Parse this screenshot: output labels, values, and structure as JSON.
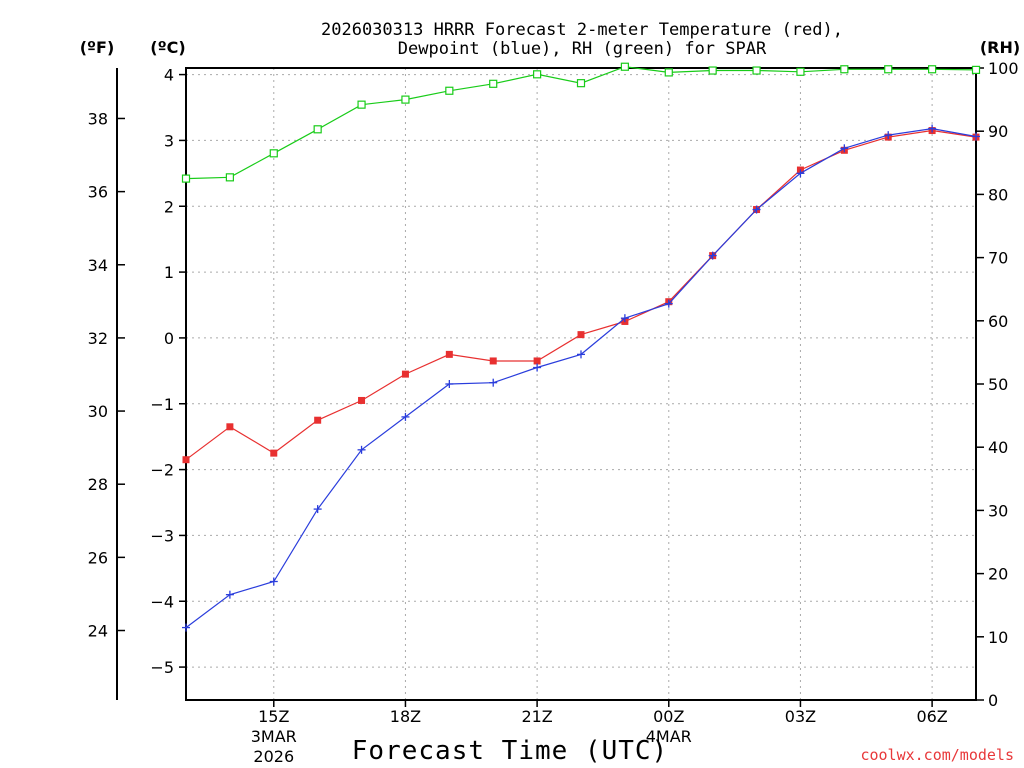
{
  "chart_data": {
    "type": "line",
    "title_line1": "2026030313 HRRR Forecast 2-meter Temperature (red),",
    "title_line2": "Dewpoint (blue), RH (green) for SPAR",
    "xlabel": "Forecast Time (UTC)",
    "credit": "coolwx.com/models",
    "units": {
      "left_outer": "(ºF)",
      "left_inner": "(ºC)",
      "right": "(RH)"
    },
    "xlim": [
      13,
      31
    ],
    "x_ticks": [
      {
        "x": 15,
        "label": "15Z",
        "sub1": "3MAR",
        "sub2": "2026"
      },
      {
        "x": 18,
        "label": "18Z",
        "sub1": "",
        "sub2": ""
      },
      {
        "x": 21,
        "label": "21Z",
        "sub1": "",
        "sub2": ""
      },
      {
        "x": 24,
        "label": "00Z",
        "sub1": "4MAR",
        "sub2": ""
      },
      {
        "x": 27,
        "label": "03Z",
        "sub1": "",
        "sub2": ""
      },
      {
        "x": 30,
        "label": "06Z",
        "sub1": "",
        "sub2": ""
      }
    ],
    "ylim_c": [
      -5.5,
      4.1
    ],
    "yticks_c": [
      -5,
      -4,
      -3,
      -2,
      -1,
      0,
      1,
      2,
      3,
      4
    ],
    "yticks_f": [
      24,
      26,
      28,
      30,
      32,
      34,
      36,
      38
    ],
    "ylim_rh": [
      0,
      100
    ],
    "yticks_rh": [
      0,
      10,
      20,
      30,
      40,
      50,
      60,
      70,
      80,
      90,
      100
    ],
    "x": [
      13,
      14,
      15,
      16,
      17,
      18,
      19,
      20,
      21,
      22,
      23,
      24,
      25,
      26,
      27,
      28,
      29,
      30,
      31
    ],
    "series": [
      {
        "name": "2-meter Temperature",
        "axis": "C",
        "color": "#e83030",
        "marker": "square-filled",
        "values": [
          -1.85,
          -1.35,
          -1.75,
          -1.25,
          -0.95,
          -0.55,
          -0.25,
          -0.35,
          -0.35,
          0.05,
          0.25,
          0.55,
          1.25,
          1.95,
          2.55,
          2.85,
          3.05,
          3.15,
          3.05
        ]
      },
      {
        "name": "Dewpoint",
        "axis": "C",
        "color": "#2a3ddc",
        "marker": "plus",
        "values": [
          -4.4,
          -3.9,
          -3.7,
          -2.6,
          -1.7,
          -1.2,
          -0.7,
          -0.68,
          -0.45,
          -0.25,
          0.3,
          0.52,
          1.25,
          1.95,
          2.5,
          2.88,
          3.08,
          3.18,
          3.06
        ]
      },
      {
        "name": "RH",
        "axis": "RH",
        "color": "#19cc19",
        "marker": "square-open",
        "values": [
          82.5,
          82.7,
          86.5,
          90.3,
          94.2,
          95.0,
          96.4,
          97.5,
          99.0,
          97.6,
          100.2,
          99.3,
          99.6,
          99.6,
          99.4,
          99.8,
          99.8,
          99.8,
          99.7
        ]
      }
    ]
  }
}
